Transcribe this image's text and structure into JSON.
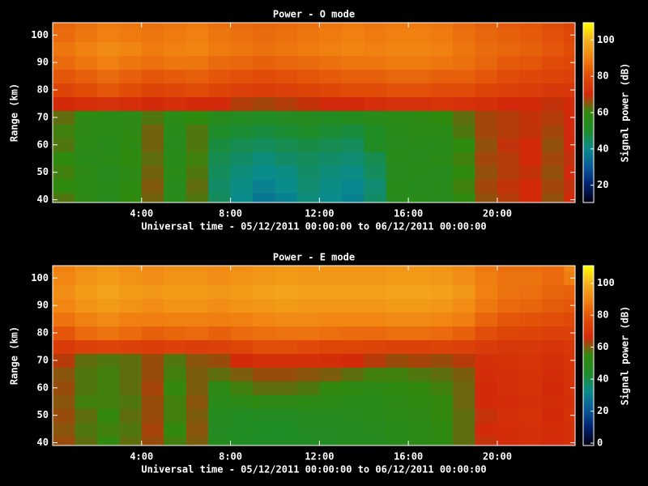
{
  "chart_data": [
    {
      "type": "heatmap",
      "title": "Power - O mode",
      "xlabel": "Universal time - 05/12/2011 00:00:00 to 06/12/2011 00:00:00",
      "ylabel": "Range (km)",
      "colorbar_label": "Signal power (dB)",
      "x": [
        0,
        1,
        2,
        3,
        4,
        5,
        6,
        7,
        8,
        9,
        10,
        11,
        12,
        13,
        14,
        15,
        16,
        17,
        18,
        19,
        20,
        21,
        22,
        23
      ],
      "y": [
        40,
        45,
        50,
        55,
        60,
        65,
        70,
        75,
        80,
        85,
        90,
        95,
        100,
        105
      ],
      "z": [
        [
          62,
          58,
          55,
          60,
          64,
          56,
          62,
          45,
          40,
          36,
          38,
          42,
          40,
          38,
          44,
          55,
          56,
          55,
          60,
          66,
          68,
          70,
          66,
          70
        ],
        [
          60,
          57,
          56,
          59,
          65,
          55,
          63,
          44,
          41,
          38,
          40,
          43,
          41,
          39,
          43,
          56,
          55,
          56,
          61,
          67,
          69,
          70,
          67,
          69
        ],
        [
          61,
          58,
          55,
          58,
          64,
          57,
          62,
          45,
          42,
          40,
          41,
          44,
          42,
          41,
          45,
          55,
          56,
          55,
          60,
          66,
          68,
          69,
          66,
          70
        ],
        [
          60,
          56,
          57,
          60,
          63,
          56,
          61,
          46,
          44,
          42,
          44,
          45,
          44,
          43,
          46,
          56,
          55,
          57,
          61,
          67,
          68,
          70,
          67,
          69
        ],
        [
          62,
          57,
          56,
          59,
          64,
          55,
          62,
          48,
          46,
          45,
          46,
          47,
          46,
          45,
          52,
          55,
          56,
          56,
          60,
          66,
          69,
          70,
          66,
          70
        ],
        [
          61,
          58,
          57,
          58,
          64,
          56,
          62,
          50,
          49,
          48,
          49,
          50,
          49,
          48,
          52,
          56,
          57,
          57,
          62,
          67,
          68,
          69,
          67,
          70
        ],
        [
          63,
          58,
          57,
          58,
          62,
          57,
          60,
          55,
          53,
          52,
          53,
          54,
          53,
          54,
          56,
          57,
          58,
          60,
          63,
          67,
          68,
          69,
          68,
          70
        ],
        [
          70,
          71,
          72,
          71,
          70,
          71,
          70,
          70,
          68,
          67,
          68,
          69,
          70,
          70,
          71,
          72,
          72,
          73,
          72,
          71,
          70,
          70,
          69,
          70
        ],
        [
          78,
          80,
          82,
          80,
          78,
          79,
          80,
          78,
          77,
          76,
          77,
          78,
          79,
          80,
          80,
          81,
          81,
          80,
          80,
          78,
          77,
          76,
          74,
          74
        ],
        [
          82,
          84,
          86,
          84,
          82,
          83,
          84,
          82,
          81,
          80,
          81,
          82,
          83,
          84,
          84,
          85,
          85,
          84,
          84,
          82,
          80,
          79,
          78,
          77
        ],
        [
          86,
          88,
          90,
          88,
          87,
          88,
          88,
          86,
          85,
          84,
          85,
          86,
          87,
          88,
          88,
          89,
          89,
          88,
          87,
          85,
          83,
          82,
          80,
          79
        ],
        [
          88,
          90,
          92,
          91,
          89,
          90,
          91,
          89,
          88,
          87,
          88,
          89,
          90,
          91,
          90,
          91,
          91,
          90,
          88,
          86,
          85,
          84,
          82,
          80
        ],
        [
          86,
          88,
          90,
          89,
          88,
          89,
          90,
          88,
          87,
          86,
          87,
          88,
          89,
          90,
          89,
          90,
          90,
          89,
          87,
          85,
          84,
          83,
          81,
          79
        ],
        [
          85,
          87,
          89,
          88,
          87,
          88,
          89,
          87,
          86,
          85,
          86,
          87,
          88,
          89,
          88,
          89,
          89,
          88,
          86,
          84,
          83,
          82,
          80,
          78
        ]
      ],
      "xlim": [
        0,
        23.5
      ],
      "ylim": [
        39,
        104.5
      ],
      "xticks": [
        {
          "value": 4,
          "label": "4:00"
        },
        {
          "value": 8,
          "label": "8:00"
        },
        {
          "value": 12,
          "label": "12:00"
        },
        {
          "value": 16,
          "label": "16:00"
        },
        {
          "value": 20,
          "label": "20:00"
        }
      ],
      "yticks": [
        40,
        50,
        60,
        70,
        80,
        90,
        100
      ],
      "clim": [
        10.5,
        109.5
      ],
      "cticks": [
        20,
        40,
        60,
        80,
        100
      ],
      "colormap": [
        "#000010",
        "#00206e",
        "#0a5a9a",
        "#0a8c8c",
        "#1e8c28",
        "#2f8a10",
        "#d22a0a",
        "#e04a08",
        "#f07f10",
        "#f5b020",
        "#ffff00"
      ]
    },
    {
      "type": "heatmap",
      "title": "Power - E mode",
      "xlabel": "Universal time - 05/12/2011 00:00:00 to 06/12/2011 00:00:00",
      "ylabel": "Range (km)",
      "colorbar_label": "Signal power (dB)",
      "x": [
        0,
        1,
        2,
        3,
        4,
        5,
        6,
        7,
        8,
        9,
        10,
        11,
        12,
        13,
        14,
        15,
        16,
        17,
        18,
        19,
        20,
        21,
        22,
        23
      ],
      "y": [
        40,
        45,
        50,
        55,
        60,
        65,
        70,
        75,
        80,
        85,
        90,
        95,
        100,
        105
      ],
      "z": [
        [
          62,
          58,
          55,
          58,
          62,
          56,
          60,
          48,
          45,
          44,
          44,
          46,
          47,
          48,
          48,
          50,
          52,
          54,
          58,
          65,
          67,
          68,
          66,
          68
        ],
        [
          61,
          57,
          56,
          57,
          63,
          55,
          61,
          47,
          46,
          45,
          45,
          47,
          47,
          48,
          49,
          51,
          52,
          54,
          58,
          66,
          67,
          68,
          67,
          68
        ],
        [
          62,
          58,
          55,
          58,
          62,
          56,
          60,
          48,
          46,
          47,
          47,
          48,
          48,
          49,
          50,
          52,
          53,
          55,
          58,
          65,
          68,
          69,
          66,
          69
        ],
        [
          61,
          56,
          56,
          57,
          62,
          56,
          61,
          50,
          52,
          54,
          54,
          53,
          52,
          51,
          51,
          53,
          54,
          55,
          59,
          66,
          67,
          68,
          67,
          68
        ],
        [
          62,
          57,
          56,
          58,
          63,
          55,
          60,
          53,
          56,
          58,
          58,
          57,
          55,
          54,
          53,
          54,
          55,
          56,
          59,
          66,
          68,
          69,
          66,
          69
        ],
        [
          61,
          57,
          56,
          58,
          62,
          56,
          60,
          58,
          60,
          62,
          62,
          61,
          60,
          58,
          56,
          56,
          57,
          58,
          60,
          67,
          68,
          69,
          67,
          69
        ],
        [
          64,
          58,
          57,
          58,
          62,
          57,
          61,
          62,
          66,
          68,
          68,
          68,
          67,
          66,
          64,
          62,
          63,
          62,
          64,
          68,
          69,
          70,
          68,
          70
        ],
        [
          72,
          74,
          75,
          74,
          73,
          74,
          73,
          74,
          76,
          78,
          78,
          77,
          76,
          76,
          75,
          74,
          74,
          75,
          74,
          72,
          71,
          71,
          70,
          71
        ],
        [
          80,
          84,
          86,
          84,
          82,
          83,
          84,
          82,
          84,
          85,
          86,
          86,
          85,
          84,
          84,
          85,
          85,
          84,
          82,
          78,
          76,
          75,
          74,
          74
        ],
        [
          86,
          89,
          91,
          89,
          88,
          89,
          89,
          88,
          89,
          90,
          91,
          91,
          90,
          90,
          90,
          91,
          91,
          90,
          88,
          83,
          80,
          79,
          78,
          77
        ],
        [
          90,
          93,
          95,
          93,
          92,
          93,
          93,
          92,
          93,
          94,
          95,
          94,
          94,
          94,
          94,
          95,
          95,
          94,
          92,
          87,
          84,
          83,
          81,
          80
        ],
        [
          92,
          95,
          97,
          95,
          94,
          95,
          95,
          94,
          95,
          96,
          97,
          96,
          96,
          96,
          96,
          97,
          97,
          96,
          94,
          89,
          86,
          85,
          83,
          82
        ],
        [
          90,
          93,
          95,
          93,
          92,
          93,
          93,
          92,
          93,
          94,
          95,
          94,
          94,
          94,
          94,
          95,
          95,
          94,
          92,
          88,
          86,
          86,
          84,
          88
        ],
        [
          89,
          92,
          94,
          92,
          91,
          92,
          92,
          91,
          92,
          93,
          94,
          93,
          93,
          93,
          93,
          94,
          94,
          93,
          91,
          87,
          85,
          85,
          84,
          90
        ]
      ],
      "xlim": [
        0,
        23.5
      ],
      "ylim": [
        39,
        104.5
      ],
      "xticks": [
        {
          "value": 4,
          "label": "4:00"
        },
        {
          "value": 8,
          "label": "8:00"
        },
        {
          "value": 12,
          "label": "12:00"
        },
        {
          "value": 16,
          "label": "16:00"
        },
        {
          "value": 20,
          "label": "20:00"
        }
      ],
      "yticks": [
        40,
        50,
        60,
        70,
        80,
        90,
        100
      ],
      "clim": [
        -1.5,
        111
      ],
      "cticks": [
        0,
        20,
        40,
        60,
        80,
        100
      ],
      "colormap": [
        "#000010",
        "#00206e",
        "#0a5a9a",
        "#0a8c8c",
        "#1e8c28",
        "#2f8a10",
        "#d22a0a",
        "#e04a08",
        "#f07f10",
        "#f5b020",
        "#ffff00"
      ]
    }
  ]
}
